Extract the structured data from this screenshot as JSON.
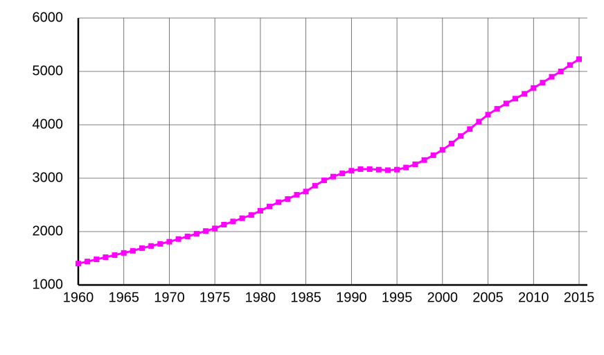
{
  "chart_data": {
    "type": "line",
    "x": [
      1960,
      1961,
      1962,
      1963,
      1964,
      1965,
      1966,
      1967,
      1968,
      1969,
      1970,
      1971,
      1972,
      1973,
      1974,
      1975,
      1976,
      1977,
      1978,
      1979,
      1980,
      1981,
      1982,
      1983,
      1984,
      1985,
      1986,
      1987,
      1988,
      1989,
      1990,
      1991,
      1992,
      1993,
      1994,
      1995,
      1996,
      1997,
      1998,
      1999,
      2000,
      2001,
      2002,
      2003,
      2004,
      2005,
      2006,
      2007,
      2008,
      2009,
      2010,
      2011,
      2012,
      2013,
      2014,
      2015
    ],
    "series": [
      {
        "color": "#ff00ff",
        "values": [
          1400,
          1440,
          1480,
          1520,
          1560,
          1600,
          1640,
          1690,
          1730,
          1770,
          1810,
          1860,
          1910,
          1960,
          2010,
          2060,
          2130,
          2190,
          2250,
          2310,
          2390,
          2470,
          2550,
          2610,
          2690,
          2750,
          2860,
          2960,
          3030,
          3090,
          3140,
          3170,
          3170,
          3160,
          3150,
          3160,
          3200,
          3260,
          3340,
          3430,
          3530,
          3650,
          3790,
          3920,
          4060,
          4190,
          4300,
          4400,
          4490,
          4580,
          4690,
          4790,
          4900,
          5000,
          5120,
          5230
        ]
      }
    ],
    "xlim": [
      1960,
      2015
    ],
    "xticks": [
      1960,
      1965,
      1970,
      1975,
      1980,
      1985,
      1990,
      1995,
      2000,
      2005,
      2010,
      2015
    ],
    "ylim": [
      1000,
      6000
    ],
    "yticks": [
      1000,
      2000,
      3000,
      4000,
      5000,
      6000
    ],
    "grid": true
  }
}
